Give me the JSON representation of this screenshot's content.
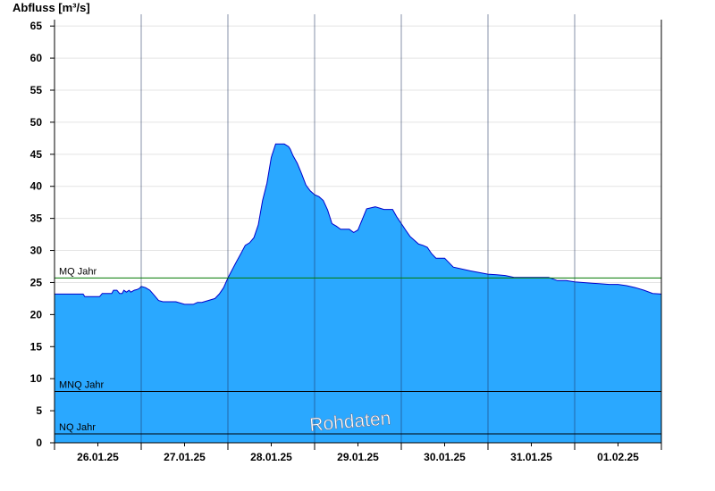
{
  "chart_data": {
    "type": "area",
    "ylabel": "Abfluss [m³/s]",
    "ylim": [
      0,
      66
    ],
    "yticks": [
      0,
      5,
      10,
      15,
      20,
      25,
      30,
      35,
      40,
      45,
      50,
      55,
      60,
      65
    ],
    "xlim": [
      0,
      7
    ],
    "day_labels": [
      "26.01.25",
      "27.01.25",
      "28.01.25",
      "29.01.25",
      "30.01.25",
      "31.01.25",
      "01.02.25"
    ],
    "grid": true,
    "fill_color": "#2aa8ff",
    "line_color": "#0000cc",
    "watermark": "Rohdaten",
    "reference_lines": [
      {
        "label": "MQ Jahr",
        "value": 25.7,
        "color": "#007a00"
      },
      {
        "label": "MNQ Jahr",
        "value": 8.0,
        "color": "#000000"
      },
      {
        "label": "NQ Jahr",
        "value": 1.4,
        "color": "#000000"
      }
    ],
    "series": [
      {
        "x": [
          0,
          0.33,
          0.35,
          0.52,
          0.55,
          0.66,
          0.68,
          0.72,
          0.75,
          0.78,
          0.8,
          0.83,
          0.86,
          0.88,
          0.92,
          0.95,
          0.98,
          1.0,
          1.05,
          1.1,
          1.15,
          1.2,
          1.25,
          1.3,
          1.35,
          1.4,
          1.5,
          1.6,
          1.65,
          1.7,
          1.85,
          1.9,
          1.95,
          2.0,
          2.05,
          2.1,
          2.15,
          2.2,
          2.25,
          2.3,
          2.35,
          2.4,
          2.45,
          2.5,
          2.55,
          2.6,
          2.65,
          2.7,
          2.72,
          2.75,
          2.8,
          2.85,
          2.9,
          2.95,
          3.0,
          3.05,
          3.1,
          3.15,
          3.2,
          3.25,
          3.3,
          3.35,
          3.4,
          3.45,
          3.5,
          3.6,
          3.7,
          3.75,
          3.8,
          3.85,
          3.9,
          3.95,
          4.0,
          4.05,
          4.1,
          4.15,
          4.2,
          4.25,
          4.3,
          4.35,
          4.4,
          4.5,
          4.6,
          4.8,
          5.0,
          5.1,
          5.2,
          5.3,
          5.4,
          5.5,
          5.6,
          5.7,
          5.8,
          5.9,
          6.0,
          6.1,
          6.2,
          6.3,
          6.4,
          6.5,
          6.6,
          6.7,
          6.8,
          6.9,
          7.0
        ],
        "y": [
          23.2,
          23.2,
          22.8,
          22.8,
          23.3,
          23.3,
          23.8,
          23.8,
          23.3,
          23.3,
          23.8,
          23.5,
          23.8,
          23.5,
          23.8,
          23.9,
          24.1,
          24.4,
          24.2,
          23.8,
          23.0,
          22.2,
          22.0,
          22.0,
          22.0,
          22.0,
          21.6,
          21.6,
          21.9,
          21.9,
          22.5,
          23.2,
          24.2,
          25.7,
          27.0,
          28.3,
          29.5,
          30.8,
          31.2,
          32.0,
          34.0,
          37.8,
          40.5,
          44.5,
          46.6,
          46.6,
          46.6,
          46.2,
          45.8,
          44.8,
          43.6,
          42.0,
          40.2,
          39.3,
          38.7,
          38.4,
          37.8,
          36.3,
          34.2,
          33.8,
          33.3,
          33.3,
          33.3,
          32.8,
          33.2,
          36.5,
          36.8,
          36.6,
          36.4,
          36.4,
          36.4,
          35.2,
          34.2,
          33.2,
          32.2,
          31.6,
          31.0,
          30.8,
          30.5,
          29.5,
          28.8,
          28.8,
          27.4,
          26.8,
          26.3,
          26.2,
          26.1,
          25.8,
          25.8,
          25.8,
          25.8,
          25.8,
          25.3,
          25.3,
          25.1,
          25.0,
          24.9,
          24.8,
          24.7,
          24.7,
          24.5,
          24.2,
          23.8,
          23.3,
          23.2
        ]
      }
    ]
  }
}
